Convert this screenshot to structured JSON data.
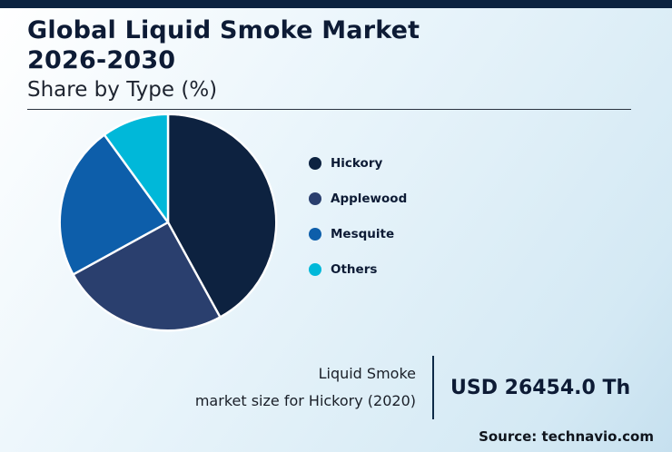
{
  "page": {
    "title_line1": "Global Liquid Smoke Market",
    "title_line2": "2026-2030",
    "subtitle": "Share by Type (%)",
    "source": "Source: technavio.com"
  },
  "stat": {
    "label_line1": "Liquid Smoke",
    "label_line2": "market size for Hickory (2020)",
    "value": "USD 26454.0 Th"
  },
  "chart_data": {
    "type": "pie",
    "title": "Global Liquid Smoke Market 2026-2030",
    "subtitle": "Share by Type (%)",
    "categories": [
      "Hickory",
      "Applewood",
      "Mesquite",
      "Others"
    ],
    "values": [
      42,
      25,
      23,
      10
    ],
    "units": "%",
    "colors": [
      "#0d2240",
      "#2a3f6e",
      "#0d5eaa",
      "#00b8d9"
    ],
    "legend_position": "right",
    "start_angle_deg": -90,
    "direction": "clockwise",
    "annotation": "Liquid Smoke market size for Hickory (2020): USD 26454.0 Th"
  },
  "colors": {
    "accent_dark_navy": "#0c2340",
    "background_light_blue": "#d4e9f4"
  }
}
